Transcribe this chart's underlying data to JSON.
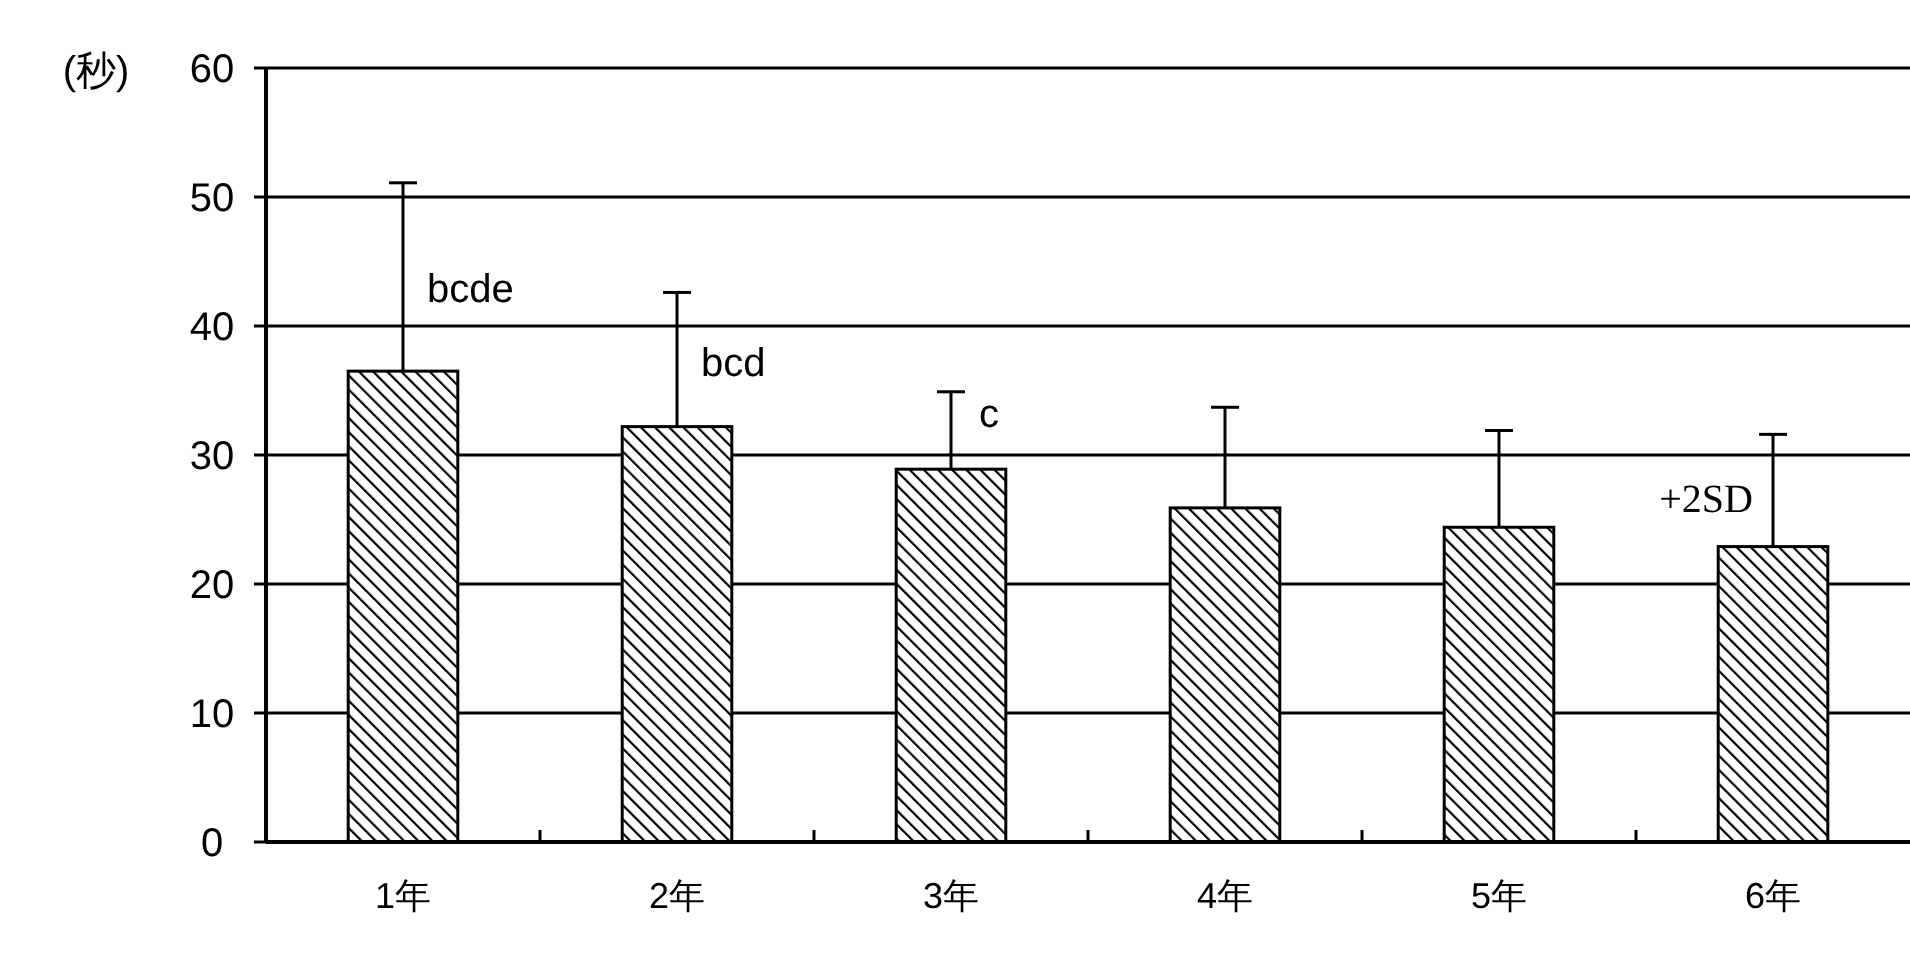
{
  "chart_data": {
    "type": "bar",
    "ylabel": "(秒)",
    "categories": [
      "1年",
      "2年",
      "3年",
      "4年",
      "5年",
      "6年"
    ],
    "values": [
      36.5,
      32.2,
      28.9,
      25.9,
      24.4,
      22.9
    ],
    "errors": [
      [
        36.5,
        51.1
      ],
      [
        32.2,
        42.6
      ],
      [
        28.9,
        34.9
      ],
      [
        25.9,
        33.7
      ],
      [
        24.4,
        31.9
      ],
      [
        22.9,
        31.6
      ]
    ],
    "color": "#000000",
    "annotations": [
      "bcde",
      "bcd",
      "c",
      "+2SD"
    ],
    "ylim": [
      0,
      60
    ],
    "yticks": [
      0,
      10,
      20,
      30,
      40,
      50,
      60
    ],
    "grid": "y"
  }
}
